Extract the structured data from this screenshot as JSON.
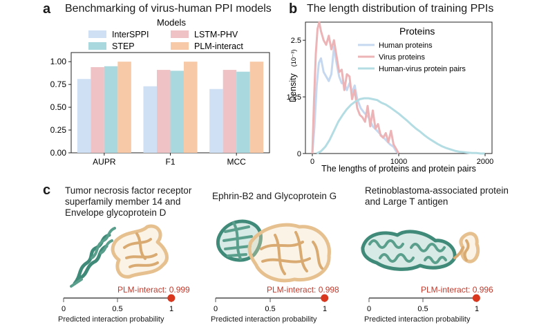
{
  "panels": {
    "a": {
      "letter": "a",
      "title": "Benchmarking of virus-human PPI models"
    },
    "b": {
      "letter": "b",
      "title": "The length distribution of training PPIs"
    },
    "c": {
      "letter": "c"
    }
  },
  "chart_data": [
    {
      "type": "bar",
      "title": "Benchmarking of virus-human PPI models",
      "legend_title": "Models",
      "legend_placement": "top",
      "categories": [
        "AUPR",
        "F1",
        "MCC"
      ],
      "series": [
        {
          "name": "InterSPPI",
          "color": "#cfe0f5",
          "values": [
            0.81,
            0.73,
            0.7
          ]
        },
        {
          "name": "LSTM-PHV",
          "color": "#efc3c6",
          "values": [
            0.94,
            0.91,
            0.91
          ]
        },
        {
          "name": "STEP",
          "color": "#a9d8df",
          "values": [
            0.95,
            0.9,
            0.89
          ]
        },
        {
          "name": "PLM-interact",
          "color": "#f8c9a6",
          "values": [
            1.0,
            1.0,
            1.0
          ]
        }
      ],
      "ylim": [
        0,
        1.1
      ],
      "yticks": [
        "0.00",
        "0.25",
        "0.50",
        "0.75",
        "1.00"
      ],
      "grid": false
    },
    {
      "type": "line",
      "title": "The length distribution of training PPIs",
      "xlabel": "The lengths of proteins and protein pairs",
      "ylabel": "Density",
      "ylabel_unit": "(10⁻³)",
      "xlim": [
        -80,
        2080
      ],
      "ylim": [
        0,
        2.9
      ],
      "xticks": [
        "0",
        "1000",
        "2000"
      ],
      "yticks": [
        "0",
        "1.25",
        "2.5"
      ],
      "legend_title": "Proteins",
      "legend_placement": "top-right",
      "series": [
        {
          "name": "Human proteins",
          "color": "#c5d8f0",
          "x": [
            0,
            25,
            50,
            75,
            100,
            130,
            160,
            190,
            220,
            250,
            280,
            310,
            340,
            370,
            400,
            430,
            460,
            490,
            520,
            560,
            600,
            650,
            700,
            750,
            800,
            850,
            900,
            940,
            970,
            1000
          ],
          "y": [
            0,
            0.6,
            1.5,
            2.0,
            2.1,
            1.8,
            1.7,
            1.6,
            1.75,
            2.35,
            2.0,
            1.7,
            1.55,
            1.55,
            1.4,
            1.55,
            1.35,
            1.5,
            1.2,
            1.0,
            0.9,
            0.8,
            0.6,
            0.5,
            0.4,
            0.3,
            0.2,
            0.15,
            0.05,
            0
          ]
        },
        {
          "name": "Virus proteins",
          "color": "#ecb4b6",
          "x": [
            0,
            20,
            40,
            60,
            80,
            100,
            130,
            160,
            190,
            220,
            250,
            280,
            310,
            340,
            370,
            400,
            430,
            460,
            490,
            520,
            550,
            580,
            610,
            640,
            670,
            700,
            730,
            760,
            790,
            820,
            850,
            880,
            910,
            940,
            970,
            1000
          ],
          "y": [
            0,
            1.2,
            2.2,
            2.75,
            2.9,
            2.7,
            2.5,
            2.4,
            2.6,
            2.3,
            2.5,
            2.15,
            1.8,
            1.85,
            1.4,
            1.75,
            1.7,
            1.2,
            1.4,
            1.0,
            0.85,
            0.8,
            0.7,
            1.05,
            0.6,
            0.95,
            0.55,
            0.65,
            0.4,
            0.35,
            0.45,
            0.25,
            0.5,
            0.2,
            0.1,
            0
          ]
        },
        {
          "name": "Human-virus protein pairs",
          "color": "#b3dce3",
          "x": [
            50,
            100,
            150,
            200,
            250,
            300,
            350,
            400,
            450,
            500,
            550,
            600,
            650,
            700,
            750,
            800,
            850,
            900,
            950,
            1000,
            1050,
            1100,
            1150,
            1200,
            1250,
            1300,
            1350,
            1400,
            1450,
            1500,
            1550,
            1600,
            1650,
            1700,
            1750,
            1800,
            1850,
            1900,
            1950,
            2000
          ],
          "y": [
            0,
            0.05,
            0.15,
            0.3,
            0.5,
            0.7,
            0.85,
            0.98,
            1.08,
            1.15,
            1.2,
            1.22,
            1.22,
            1.2,
            1.18,
            1.12,
            1.08,
            1.02,
            0.95,
            0.88,
            0.8,
            0.72,
            0.63,
            0.55,
            0.48,
            0.4,
            0.33,
            0.27,
            0.21,
            0.16,
            0.12,
            0.09,
            0.06,
            0.04,
            0.03,
            0.02,
            0.01,
            0.01,
            0.0,
            0.0
          ]
        }
      ]
    }
  ],
  "structures": [
    {
      "title": "Tumor necrosis factor receptor superfamily member 14 and Envelope glycoprotein D",
      "prob_label": "PLM-interact: 0.999",
      "probability": 0.999,
      "ticks": [
        "0",
        "0.5",
        "1"
      ],
      "caption": "Predicted interaction probability"
    },
    {
      "title": "Ephrin-B2 and Glycoprotein G",
      "prob_label": "PLM-interact: 0.998",
      "probability": 0.998,
      "ticks": [
        "0",
        "0.5",
        "1"
      ],
      "caption": "Predicted interaction probability"
    },
    {
      "title": "Retinoblastoma-associated protein  and Large T antigen",
      "prob_label": "PLM-interact: 0.996",
      "probability": 0.996,
      "ticks": [
        "0",
        "0.5",
        "1"
      ],
      "caption": "Predicted interaction probability"
    }
  ],
  "colors": {
    "teal": "#3f8a78",
    "tan": "#e6c08e",
    "accent": "#d9381e"
  }
}
